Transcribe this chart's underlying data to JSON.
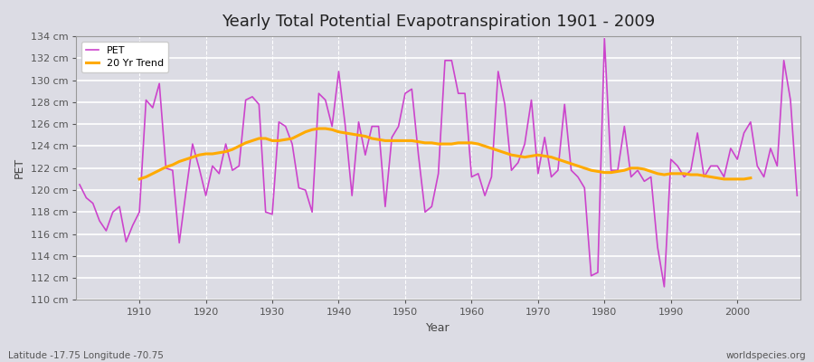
{
  "title": "Yearly Total Potential Evapotranspiration 1901 - 2009",
  "xlabel": "Year",
  "ylabel": "PET",
  "footnote_left": "Latitude -17.75 Longitude -70.75",
  "footnote_right": "worldspecies.org",
  "pet_color": "#cc44cc",
  "trend_color": "#ffaa00",
  "bg_color": "#dcdce4",
  "ylim": [
    110,
    134
  ],
  "ytick_step": 2,
  "years": [
    1901,
    1902,
    1903,
    1904,
    1905,
    1906,
    1907,
    1908,
    1909,
    1910,
    1911,
    1912,
    1913,
    1914,
    1915,
    1916,
    1917,
    1918,
    1919,
    1920,
    1921,
    1922,
    1923,
    1924,
    1925,
    1926,
    1927,
    1928,
    1929,
    1930,
    1931,
    1932,
    1933,
    1934,
    1935,
    1936,
    1937,
    1938,
    1939,
    1940,
    1941,
    1942,
    1943,
    1944,
    1945,
    1946,
    1947,
    1948,
    1949,
    1950,
    1951,
    1952,
    1953,
    1954,
    1955,
    1956,
    1957,
    1958,
    1959,
    1960,
    1961,
    1962,
    1963,
    1964,
    1965,
    1966,
    1967,
    1968,
    1969,
    1970,
    1971,
    1972,
    1973,
    1974,
    1975,
    1976,
    1977,
    1978,
    1979,
    1980,
    1981,
    1982,
    1983,
    1984,
    1985,
    1986,
    1987,
    1988,
    1989,
    1990,
    1991,
    1992,
    1993,
    1994,
    1995,
    1996,
    1997,
    1998,
    1999,
    2000,
    2001,
    2002,
    2003,
    2004,
    2005,
    2006,
    2007,
    2008,
    2009
  ],
  "pet_values": [
    120.5,
    119.3,
    118.8,
    117.2,
    116.3,
    118.0,
    118.5,
    115.3,
    116.8,
    118.0,
    128.2,
    127.5,
    129.7,
    122.0,
    121.8,
    115.2,
    119.8,
    124.2,
    122.0,
    119.5,
    122.2,
    121.5,
    124.2,
    121.8,
    122.2,
    128.2,
    128.5,
    127.8,
    118.0,
    117.8,
    126.2,
    125.8,
    124.2,
    120.2,
    120.0,
    118.0,
    128.8,
    128.2,
    125.8,
    130.8,
    125.8,
    119.5,
    126.2,
    123.2,
    125.8,
    125.8,
    118.5,
    124.8,
    125.8,
    128.8,
    129.2,
    123.2,
    118.0,
    118.5,
    121.5,
    131.8,
    131.8,
    128.8,
    128.8,
    121.2,
    121.5,
    119.5,
    121.2,
    130.8,
    127.8,
    121.8,
    122.5,
    124.2,
    128.2,
    121.5,
    124.8,
    121.2,
    121.8,
    127.8,
    121.8,
    121.2,
    120.2,
    112.2,
    112.5,
    133.8,
    121.8,
    121.8,
    125.8,
    121.2,
    121.8,
    120.8,
    121.2,
    114.8,
    111.2,
    122.8,
    122.2,
    121.2,
    121.8,
    125.2,
    121.2,
    122.2,
    122.2,
    121.2,
    123.8,
    122.8,
    125.2,
    126.2,
    122.2,
    121.2,
    123.8,
    122.2,
    131.8,
    128.2,
    119.5
  ],
  "trend_values": [
    null,
    null,
    null,
    null,
    null,
    null,
    null,
    null,
    null,
    121.0,
    121.2,
    121.5,
    121.8,
    122.1,
    122.3,
    122.6,
    122.8,
    123.0,
    123.2,
    123.3,
    123.3,
    123.4,
    123.5,
    123.7,
    124.0,
    124.3,
    124.5,
    124.7,
    124.7,
    124.5,
    124.5,
    124.6,
    124.7,
    125.0,
    125.3,
    125.5,
    125.6,
    125.6,
    125.5,
    125.3,
    125.2,
    125.1,
    125.0,
    124.9,
    124.7,
    124.6,
    124.5,
    124.5,
    124.5,
    124.5,
    124.5,
    124.4,
    124.3,
    124.3,
    124.2,
    124.2,
    124.2,
    124.3,
    124.3,
    124.3,
    124.2,
    124.0,
    123.8,
    123.6,
    123.4,
    123.2,
    123.1,
    123.0,
    123.1,
    123.2,
    123.1,
    123.0,
    122.8,
    122.6,
    122.4,
    122.2,
    122.0,
    121.8,
    121.7,
    121.6,
    121.6,
    121.7,
    121.8,
    122.0,
    122.0,
    121.9,
    121.7,
    121.5,
    121.4,
    121.5,
    121.5,
    121.5,
    121.4,
    121.4,
    121.3,
    121.2,
    121.1,
    121.0,
    121.0,
    121.0,
    121.0,
    121.1,
    null,
    null,
    null,
    null,
    null,
    null,
    null
  ]
}
